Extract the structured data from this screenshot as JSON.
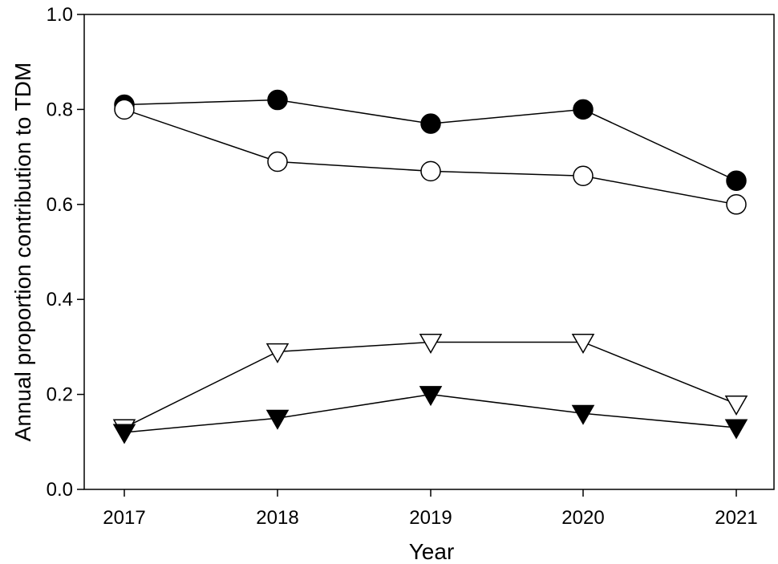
{
  "chart_data": {
    "type": "line",
    "title": "",
    "xlabel": "Year",
    "ylabel": "Annual proportion contribution to TDM",
    "ylim": [
      0.0,
      1.0
    ],
    "yticks": [
      "0.0",
      "0.2",
      "0.4",
      "0.6",
      "0.8",
      "1.0"
    ],
    "x": [
      "2017",
      "2018",
      "2019",
      "2020",
      "2021"
    ],
    "grid": false,
    "legend": "none",
    "series": [
      {
        "marker": "circle-filled",
        "color": "#000000",
        "values": [
          0.81,
          0.82,
          0.77,
          0.8,
          0.65
        ]
      },
      {
        "marker": "circle-open",
        "color": "#000000",
        "values": [
          0.8,
          0.69,
          0.67,
          0.66,
          0.6
        ]
      },
      {
        "marker": "triangle-down-open",
        "color": "#000000",
        "values": [
          0.13,
          0.29,
          0.31,
          0.31,
          0.18
        ]
      },
      {
        "marker": "triangle-down-filled",
        "color": "#000000",
        "values": [
          0.12,
          0.15,
          0.2,
          0.16,
          0.13
        ]
      }
    ]
  }
}
